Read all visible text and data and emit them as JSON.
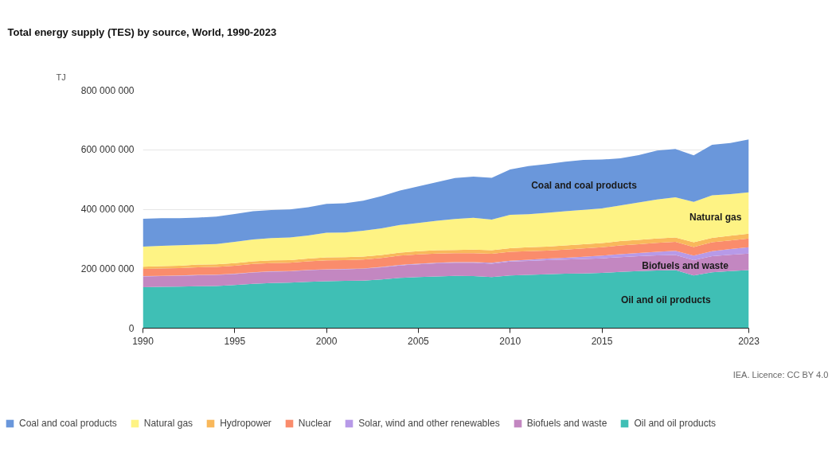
{
  "chart_data": {
    "type": "area",
    "stacked": true,
    "title": "Total energy supply (TES) by source, World, 1990-2023",
    "ylabel": "TJ",
    "x": [
      1990,
      1991,
      1992,
      1993,
      1994,
      1995,
      1996,
      1997,
      1998,
      1999,
      2000,
      2001,
      2002,
      2003,
      2004,
      2005,
      2006,
      2007,
      2008,
      2009,
      2010,
      2011,
      2012,
      2013,
      2014,
      2015,
      2016,
      2017,
      2018,
      2019,
      2020,
      2021,
      2022,
      2023
    ],
    "xlim": [
      1990,
      2023
    ],
    "xticks": [
      1990,
      1995,
      2000,
      2005,
      2010,
      2015,
      2023
    ],
    "ylim": [
      0,
      800000000
    ],
    "yticks": [
      {
        "value": 0,
        "label": "0"
      },
      {
        "value": 200000000,
        "label": "200 000 000"
      },
      {
        "value": 400000000,
        "label": "400 000 000"
      },
      {
        "value": 600000000,
        "label": "600 000 000"
      },
      {
        "value": 800000000,
        "label": "800 000 000"
      }
    ],
    "grid": "y",
    "legend": "bottom",
    "series": [
      {
        "name": "Oil and oil products",
        "color": "#3fbfb5",
        "values": [
          138000000,
          139000000,
          140000000,
          141000000,
          142000000,
          145000000,
          149000000,
          152000000,
          153000000,
          156000000,
          158000000,
          159000000,
          160000000,
          164000000,
          169000000,
          172000000,
          174000000,
          176000000,
          175000000,
          172000000,
          177000000,
          179000000,
          181000000,
          183000000,
          184000000,
          186000000,
          189000000,
          192000000,
          194000000,
          195000000,
          177000000,
          188000000,
          192000000,
          195000000
        ]
      },
      {
        "name": "Biofuels and waste",
        "color": "#c387c1",
        "values": [
          36000000,
          36000000,
          36000000,
          37000000,
          37000000,
          37000000,
          38000000,
          38000000,
          38000000,
          39000000,
          39000000,
          39000000,
          40000000,
          41000000,
          42000000,
          43000000,
          44000000,
          44000000,
          45000000,
          45000000,
          47000000,
          47000000,
          48000000,
          48000000,
          49000000,
          49000000,
          50000000,
          50000000,
          51000000,
          51000000,
          52000000,
          54000000,
          55000000,
          56000000
        ]
      },
      {
        "name": "Solar, wind and other renewables",
        "color": "#b79ae8",
        "values": [
          1000000,
          1000000,
          1000000,
          1000000,
          1000000,
          1000000,
          1000000,
          1000000,
          1000000,
          1000000,
          1000000,
          1000000,
          1000000,
          1000000,
          2000000,
          2000000,
          2000000,
          2000000,
          2000000,
          3000000,
          3000000,
          4000000,
          5000000,
          6000000,
          7000000,
          9000000,
          10000000,
          11000000,
          12000000,
          14000000,
          15000000,
          17000000,
          19000000,
          21000000
        ]
      },
      {
        "name": "Nuclear",
        "color": "#fa8c6c",
        "values": [
          24000000,
          25000000,
          25000000,
          26000000,
          26000000,
          27000000,
          28000000,
          28000000,
          28000000,
          29000000,
          30000000,
          30000000,
          30000000,
          30000000,
          31000000,
          31000000,
          31000000,
          30000000,
          30000000,
          30000000,
          30000000,
          29000000,
          27000000,
          27000000,
          28000000,
          28000000,
          29000000,
          29000000,
          30000000,
          30000000,
          29000000,
          30000000,
          29000000,
          30000000
        ]
      },
      {
        "name": "Hydropower",
        "color": "#f9b85b",
        "values": [
          8000000,
          8000000,
          8000000,
          9000000,
          9000000,
          9000000,
          9000000,
          9000000,
          9000000,
          9000000,
          10000000,
          10000000,
          10000000,
          10000000,
          10000000,
          11000000,
          11000000,
          11000000,
          12000000,
          12000000,
          12000000,
          13000000,
          13000000,
          14000000,
          14000000,
          14000000,
          15000000,
          15000000,
          15000000,
          15000000,
          16000000,
          15000000,
          16000000,
          16000000
        ]
      },
      {
        "name": "Natural gas",
        "color": "#fef384",
        "values": [
          67000000,
          68000000,
          69000000,
          67000000,
          68000000,
          71000000,
          73000000,
          75000000,
          76000000,
          78000000,
          83000000,
          83000000,
          87000000,
          90000000,
          93000000,
          95000000,
          99000000,
          104000000,
          107000000,
          103000000,
          112000000,
          111000000,
          114000000,
          115000000,
          116000000,
          117000000,
          120000000,
          126000000,
          131000000,
          135000000,
          136000000,
          143000000,
          140000000,
          139000000
        ]
      },
      {
        "name": "Coal and coal products",
        "color": "#6a97db",
        "values": [
          94000000,
          93000000,
          91000000,
          91000000,
          92000000,
          94000000,
          95000000,
          94000000,
          94000000,
          95000000,
          97000000,
          98000000,
          101000000,
          108000000,
          116000000,
          123000000,
          130000000,
          138000000,
          139000000,
          141000000,
          153000000,
          162000000,
          164000000,
          167000000,
          168000000,
          164000000,
          158000000,
          159000000,
          164000000,
          163000000,
          156000000,
          170000000,
          172000000,
          178000000
        ]
      }
    ],
    "annotations": [
      "Coal and coal products",
      "Natural gas",
      "Biofuels and waste",
      "Oil and oil products",
      "IEA. Licence: CC BY 4.0"
    ]
  }
}
